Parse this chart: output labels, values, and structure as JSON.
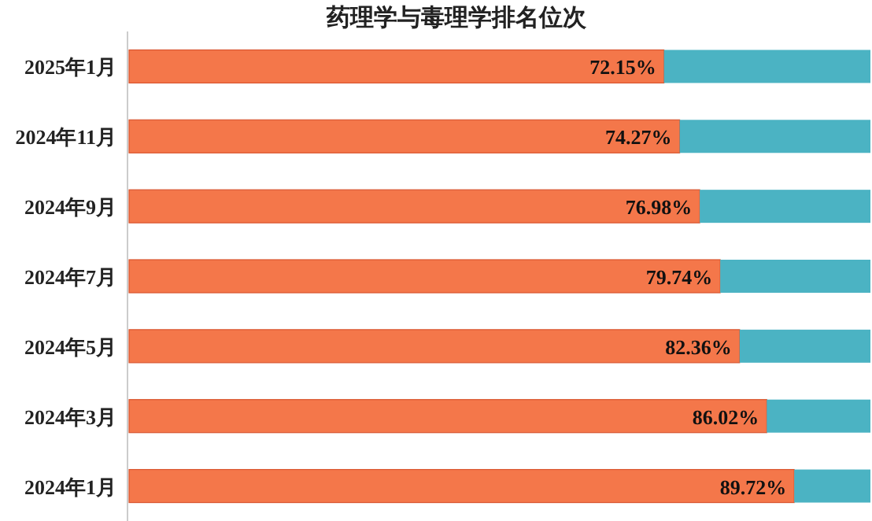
{
  "chart_data": {
    "type": "bar",
    "orientation": "horizontal",
    "stacked": true,
    "title": "药理学与毒理学排名位次",
    "categories": [
      "2025年1月",
      "2024年11月",
      "2024年9月",
      "2024年7月",
      "2024年5月",
      "2024年3月",
      "2024年1月"
    ],
    "xlim": [
      0,
      100
    ],
    "series": [
      {
        "color": "#f4774a",
        "values": [
          72.15,
          74.27,
          76.98,
          79.74,
          82.36,
          86.02,
          89.72
        ],
        "value_labels": [
          "72.15%",
          "74.27%",
          "76.98%",
          "79.74%",
          "82.36%",
          "86.02%",
          "89.72%"
        ]
      },
      {
        "color": "#4bb3c3",
        "values": [
          27.85,
          25.73,
          23.02,
          20.26,
          17.64,
          13.98,
          10.28
        ]
      }
    ]
  }
}
